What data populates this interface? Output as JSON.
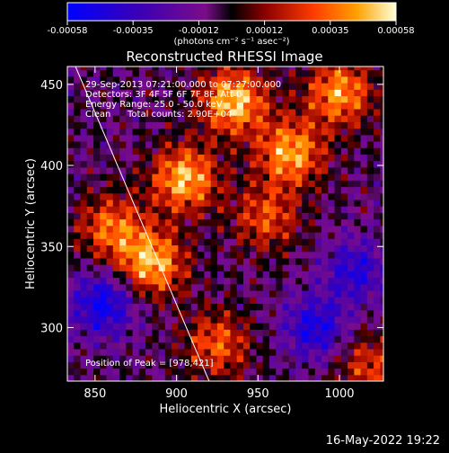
{
  "chart_data": {
    "type": "heatmap",
    "title": "Reconstructed RHESSI Image",
    "xlabel": "Heliocentric X (arcsec)",
    "ylabel": "Heliocentric Y (arcsec)",
    "xlim": [
      833,
      1027
    ],
    "ylim": [
      267,
      461
    ],
    "x_ticks": [
      850,
      900,
      950,
      1000
    ],
    "y_ticks": [
      300,
      350,
      400,
      450
    ],
    "colorbar": {
      "ticks": [
        "-0.00058",
        "-0.00035",
        "-0.00012",
        "0.00012",
        "0.00035",
        "0.00058"
      ],
      "range": [
        -0.00058,
        0.00058
      ],
      "units": "(photons cm⁻² s⁻¹ asec⁻²)"
    },
    "annotations": {
      "time": "29-Sep-2013 07:21:00.000 to 07:27:00.000",
      "detectors": "Detectors: 3F 4F 5F 6F 7F 8F, Att 0",
      "energy": "Energy Range: 25.0 - 50.0 keV",
      "method": "Clean",
      "counts": "Total counts: 2.90E+04",
      "peak": "Position of Peak = [978,421]"
    },
    "limb_line": {
      "x": [
        838,
        920
      ],
      "y": [
        461,
        267
      ]
    },
    "hot_regions": [
      {
        "x": 935,
        "y": 440,
        "w": 1.0
      },
      {
        "x": 905,
        "y": 392,
        "w": 0.95
      },
      {
        "x": 970,
        "y": 408,
        "w": 0.9
      },
      {
        "x": 1000,
        "y": 445,
        "w": 0.85
      },
      {
        "x": 885,
        "y": 340,
        "w": 0.95
      },
      {
        "x": 860,
        "y": 362,
        "w": 0.7
      },
      {
        "x": 955,
        "y": 368,
        "w": 0.6
      },
      {
        "x": 925,
        "y": 290,
        "w": 0.65
      },
      {
        "x": 1018,
        "y": 276,
        "w": 0.55
      }
    ],
    "cold_regions": [
      {
        "x": 855,
        "y": 315,
        "w": 0.8
      },
      {
        "x": 985,
        "y": 300,
        "w": 0.7
      },
      {
        "x": 1010,
        "y": 335,
        "w": 0.6
      }
    ]
  },
  "timestamp": "16-May-2022 19:22",
  "colors": {
    "background": "#000000",
    "foreground": "#ffffff"
  }
}
